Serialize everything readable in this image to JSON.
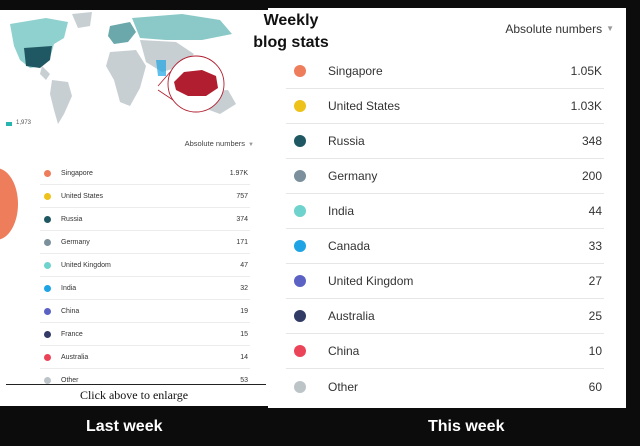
{
  "title": {
    "line1": "Weekly",
    "line2": "blog stats"
  },
  "last_week": {
    "map_legend": "1,973",
    "toggle_label": "Absolute numbers",
    "toggle_icon": "caret-down-icon",
    "rows": [
      {
        "country": "Singapore",
        "value": "1.97K",
        "color": "#ee7d5c"
      },
      {
        "country": "United States",
        "value": "757",
        "color": "#edc21a"
      },
      {
        "country": "Russia",
        "value": "374",
        "color": "#1f5863"
      },
      {
        "country": "Germany",
        "value": "171",
        "color": "#7b909c"
      },
      {
        "country": "United Kingdom",
        "value": "47",
        "color": "#6ed3cc"
      },
      {
        "country": "India",
        "value": "32",
        "color": "#1ea4e4"
      },
      {
        "country": "China",
        "value": "19",
        "color": "#5b62c4"
      },
      {
        "country": "France",
        "value": "15",
        "color": "#323a66"
      },
      {
        "country": "Australia",
        "value": "14",
        "color": "#eb4458"
      },
      {
        "country": "Other",
        "value": "53",
        "color": "#bcc4c8"
      }
    ],
    "caption": "Click above to enlarge"
  },
  "this_week": {
    "toggle_label": "Absolute numbers",
    "toggle_icon": "caret-down-icon",
    "rows": [
      {
        "country": "Singapore",
        "value": "1.05K",
        "color": "#ee7d5c"
      },
      {
        "country": "United States",
        "value": "1.03K",
        "color": "#edc21a"
      },
      {
        "country": "Russia",
        "value": "348",
        "color": "#1f5863"
      },
      {
        "country": "Germany",
        "value": "200",
        "color": "#7b909c"
      },
      {
        "country": "India",
        "value": "44",
        "color": "#6ed3cc"
      },
      {
        "country": "Canada",
        "value": "33",
        "color": "#1ea4e4"
      },
      {
        "country": "United Kingdom",
        "value": "27",
        "color": "#5b62c4"
      },
      {
        "country": "Australia",
        "value": "25",
        "color": "#323a66"
      },
      {
        "country": "China",
        "value": "10",
        "color": "#eb4458"
      },
      {
        "country": "Other",
        "value": "60",
        "color": "#bcc4c8"
      }
    ]
  },
  "footer": {
    "left": "Last week",
    "right": "This week"
  }
}
